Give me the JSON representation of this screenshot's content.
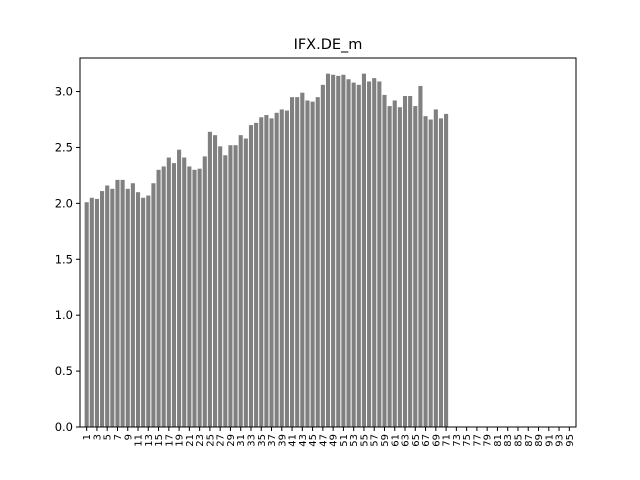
{
  "chart_data": {
    "type": "bar",
    "title": "IFX.DE_m",
    "xlabel": "",
    "ylabel": "",
    "ylim": [
      0,
      3.3
    ],
    "yticks": [
      "0.0",
      "0.5",
      "1.0",
      "1.5",
      "2.0",
      "2.5",
      "3.0"
    ],
    "grid": false,
    "legend": "none",
    "bar_color": "#808080",
    "categories": [
      1,
      2,
      3,
      4,
      5,
      6,
      7,
      8,
      9,
      10,
      11,
      12,
      13,
      14,
      15,
      16,
      17,
      18,
      19,
      20,
      21,
      22,
      23,
      24,
      25,
      26,
      27,
      28,
      29,
      30,
      31,
      32,
      33,
      34,
      35,
      36,
      37,
      38,
      39,
      40,
      41,
      42,
      43,
      44,
      45,
      46,
      47,
      48,
      49,
      50,
      51,
      52,
      53,
      54,
      55,
      56,
      57,
      58,
      59,
      60,
      61,
      62,
      63,
      64,
      65,
      66,
      67,
      68,
      69,
      70,
      71,
      72,
      73,
      74,
      75,
      76,
      77,
      78,
      79,
      80,
      81,
      82,
      83,
      84,
      85,
      86,
      87,
      88,
      89,
      90,
      91,
      92,
      93,
      94,
      95
    ],
    "values": [
      2.01,
      2.05,
      2.04,
      2.11,
      2.16,
      2.13,
      2.21,
      2.21,
      2.13,
      2.18,
      2.1,
      2.05,
      2.07,
      2.18,
      2.3,
      2.33,
      2.41,
      2.36,
      2.48,
      2.41,
      2.33,
      2.3,
      2.31,
      2.42,
      2.64,
      2.61,
      2.51,
      2.43,
      2.52,
      2.52,
      2.61,
      2.58,
      2.7,
      2.72,
      2.77,
      2.79,
      2.76,
      2.81,
      2.84,
      2.83,
      2.95,
      2.95,
      2.99,
      2.92,
      2.91,
      2.95,
      3.06,
      3.16,
      3.15,
      3.14,
      3.15,
      3.11,
      3.08,
      3.06,
      3.16,
      3.09,
      3.12,
      3.09,
      2.97,
      2.87,
      2.92,
      2.86,
      2.96,
      2.96,
      2.87,
      3.05,
      2.78,
      2.75,
      2.84,
      2.76,
      2.8,
      null,
      null,
      null,
      null,
      null,
      null,
      null,
      null,
      null,
      null,
      null,
      null,
      null,
      null,
      null,
      null,
      null,
      null,
      null,
      null,
      null,
      null,
      null,
      null
    ]
  }
}
